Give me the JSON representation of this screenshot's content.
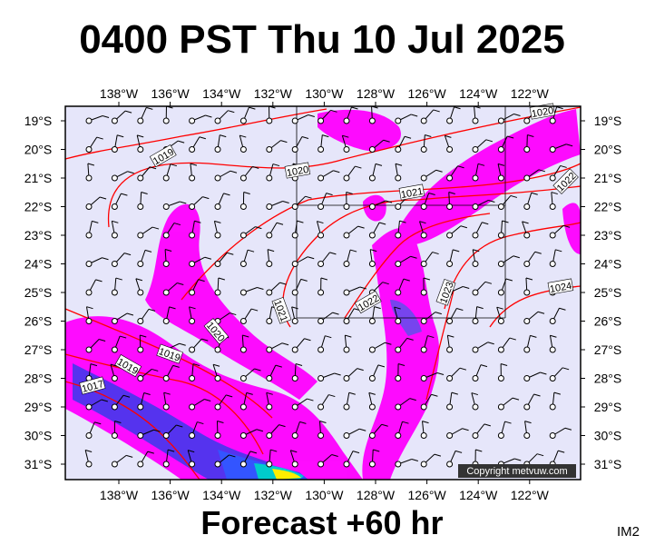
{
  "header": {
    "title": "0400 PST Thu 10 Jul 2025"
  },
  "lon_labels": [
    "138°W",
    "136°W",
    "134°W",
    "132°W",
    "130°W",
    "128°W",
    "126°W",
    "124°W",
    "122°W"
  ],
  "lat_labels": [
    "19°S",
    "20°S",
    "21°S",
    "22°S",
    "23°S",
    "24°S",
    "25°S",
    "26°S",
    "27°S",
    "28°S",
    "29°S",
    "30°S",
    "31°S"
  ],
  "isobar_labels": [
    "1020",
    "1019",
    "1020",
    "1021",
    "1022",
    "1024",
    "1021",
    "1022",
    "1023",
    "1020",
    "1019",
    "1019",
    "1017"
  ],
  "copyright": "Copyright metvuw.com",
  "footer": "Forecast +60 hr",
  "corner_label": "IM2"
}
